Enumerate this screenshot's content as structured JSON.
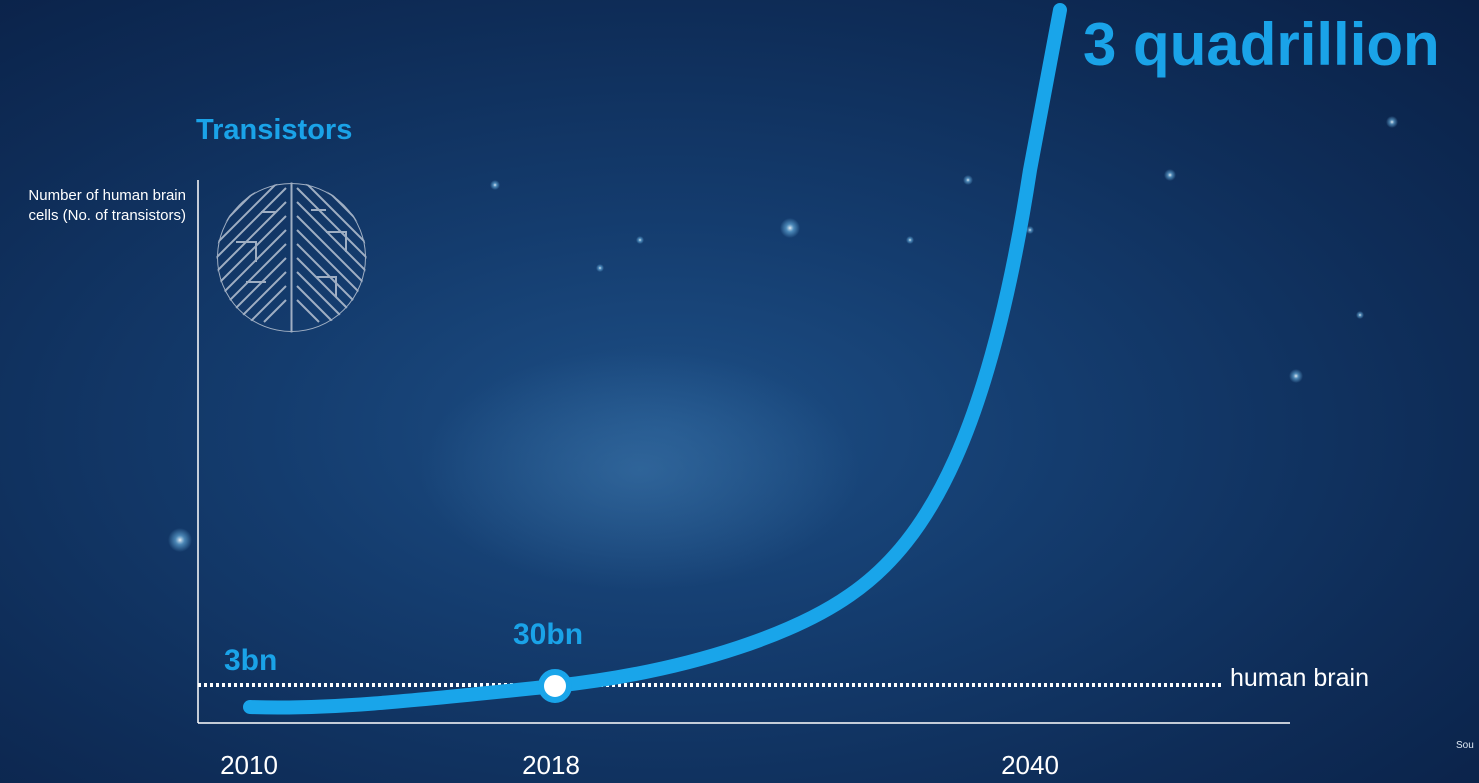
{
  "chart_data": {
    "type": "line",
    "title": "Transistors",
    "ylabel": "Number of human brain cells (No. of transistors)",
    "xlabel": "",
    "x_ticks": [
      "2010",
      "2018",
      "2040"
    ],
    "series": [
      {
        "name": "Transistors",
        "x": [
          2010,
          2018,
          2040
        ],
        "y": [
          3000000000,
          30000000000,
          3000000000000000
        ],
        "color": "#1aa3e8"
      }
    ],
    "data_labels": [
      {
        "x": 2010,
        "text": "3bn"
      },
      {
        "x": 2018,
        "text": "30bn"
      },
      {
        "x": 2040,
        "text": "3 quadrillion"
      }
    ],
    "highlight_point": {
      "x": 2018,
      "y": 30000000000
    },
    "reference_line": {
      "label": "human brain",
      "style": "dotted",
      "color": "#ffffff"
    },
    "grid": false
  },
  "icon": "brain-maze-icon",
  "source_text": "Sou"
}
